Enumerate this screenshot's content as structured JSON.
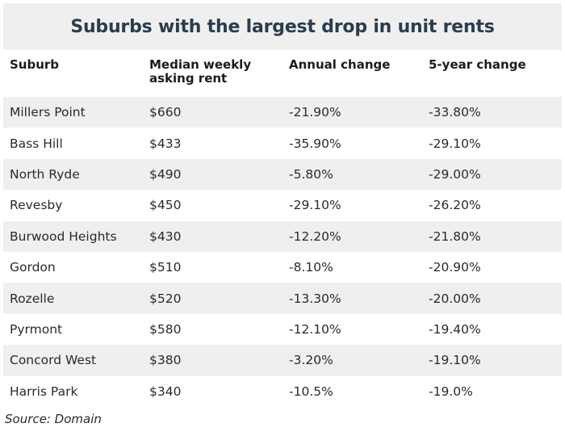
{
  "title": "Suburbs with the largest drop in unit rents",
  "headers": [
    "Suburb",
    "Median weekly asking rent",
    "Annual change",
    "5-year change"
  ],
  "rows": [
    [
      "Millers Point",
      "$660",
      "-21.90%",
      "-33.80%"
    ],
    [
      "Bass Hill",
      "$433",
      "-35.90%",
      "-29.10%"
    ],
    [
      "North Ryde",
      "$490",
      "-5.80%",
      "-29.00%"
    ],
    [
      "Revesby",
      "$450",
      "-29.10%",
      "-26.20%"
    ],
    [
      "Burwood Heights",
      "$430",
      "-12.20%",
      "-21.80%"
    ],
    [
      "Gordon",
      "$510",
      "-8.10%",
      "-20.90%"
    ],
    [
      "Rozelle",
      "$520",
      "-13.30%",
      "-20.00%"
    ],
    [
      "Pyrmont",
      "$580",
      "-12.10%",
      "-19.40%"
    ],
    [
      "Concord West",
      "$380",
      "-3.20%",
      "-19.10%"
    ],
    [
      "Harris Park",
      "$340",
      "-10.5%",
      "-19.0%"
    ]
  ],
  "source": "Source: Domain"
}
